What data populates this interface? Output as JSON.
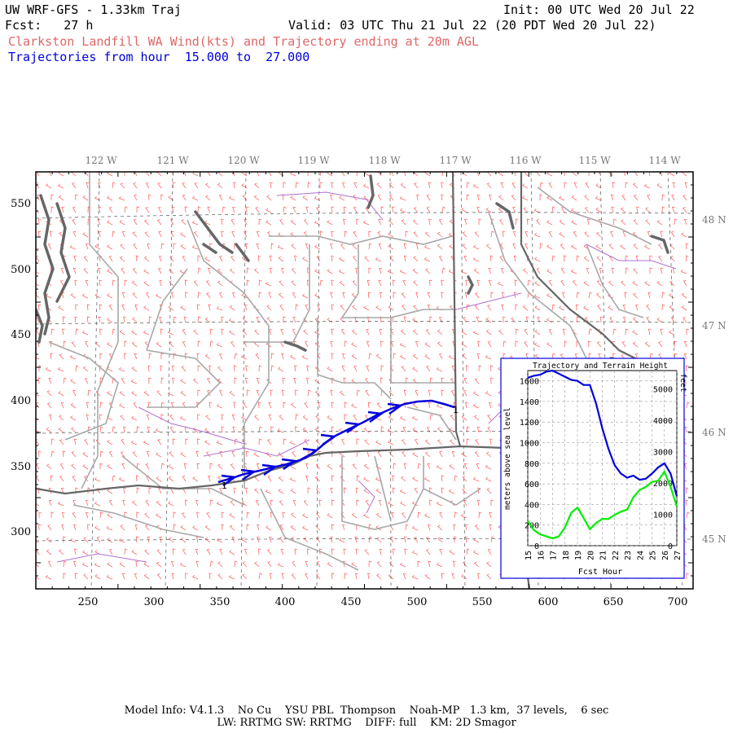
{
  "header": {
    "title": "UW WRF-GFS - 1.33km Traj",
    "init": "Init: 00 UTC Wed 20 Jul 22",
    "fcst": "Fcst:   27 h",
    "valid": "Valid: 03 UTC Thu 21 Jul 22 (20 PDT Wed 20 Jul 22)",
    "subtitle": "Clarkston Landfill WA Wind(kts) and Trajectory ending at 20m AGL",
    "traj_range": "Trajectories from hour  15.000 to  27.000"
  },
  "map": {
    "lon_labels": [
      "122 W",
      "121 W",
      "120 W",
      "119 W",
      "118 W",
      "117 W",
      "116 W",
      "115 W",
      "114 W"
    ],
    "lat_labels": [
      "48 N",
      "47 N",
      "46 N",
      "45 N"
    ],
    "grid_y_ticks": [
      "550",
      "500",
      "450",
      "400",
      "350",
      "300"
    ],
    "grid_x_ticks": [
      "250",
      "300",
      "350",
      "400",
      "450",
      "500",
      "550",
      "600",
      "650",
      "700"
    ],
    "trajectory_start_label": "1",
    "trajectory_end_label": "1",
    "colors": {
      "wind_barbs": "#ff6666",
      "trajectory": "#0000dd",
      "state_borders": "#666666",
      "county_borders": "#aaaaaa",
      "rivers": "#aa66cc",
      "water": "#666666"
    }
  },
  "inset": {
    "title": "Trajectory and Terrain Height",
    "xlabel": "Fcst Hour",
    "ylabel_left": "meters above sea level",
    "ylabel_right": "feet",
    "left_ticks": [
      "1600",
      "1400",
      "1200",
      "1000",
      "800",
      "600",
      "400",
      "200",
      "0"
    ],
    "right_ticks": [
      "5000",
      "4000",
      "3000",
      "2000",
      "1000",
      "0"
    ],
    "x_ticks": [
      "15",
      "16",
      "17",
      "18",
      "19",
      "20",
      "21",
      "22",
      "23",
      "24",
      "25",
      "26",
      "27"
    ],
    "series_colors": {
      "trajectory": "#0000dd",
      "terrain": "#00ee00"
    }
  },
  "chart_data": {
    "type": "line",
    "title": "Trajectory and Terrain Height",
    "xlabel": "Fcst Hour",
    "ylabel": "meters above sea level",
    "xlim": [
      15,
      27
    ],
    "ylim": [
      0,
      1700
    ],
    "grid": true,
    "series": [
      {
        "name": "",
        "x": [
          15.0,
          15.5,
          16.0,
          16.5,
          17.0,
          17.5,
          18.0,
          18.5,
          19.0,
          19.5,
          20.0,
          20.5,
          21.0,
          21.5,
          22.0,
          22.5,
          23.0,
          23.5,
          24.0,
          24.5,
          25.0,
          25.5,
          26.0,
          26.5,
          27.0
        ],
        "y": [
          1630,
          1650,
          1660,
          1690,
          1700,
          1670,
          1640,
          1610,
          1600,
          1560,
          1560,
          1380,
          1140,
          940,
          780,
          700,
          660,
          680,
          640,
          650,
          700,
          760,
          800,
          700,
          480
        ]
      },
      {
        "name": "",
        "x": [
          15.0,
          15.5,
          16.0,
          16.5,
          17.0,
          17.5,
          18.0,
          18.5,
          19.0,
          19.5,
          20.0,
          20.5,
          21.0,
          21.5,
          22.0,
          22.5,
          23.0,
          23.5,
          24.0,
          24.5,
          25.0,
          25.5,
          26.0,
          26.5,
          27.0
        ],
        "y": [
          240,
          150,
          110,
          90,
          70,
          90,
          180,
          320,
          370,
          270,
          160,
          220,
          260,
          260,
          300,
          330,
          350,
          470,
          540,
          570,
          620,
          630,
          720,
          570,
          380
        ]
      }
    ]
  },
  "footer": {
    "line1": "Model Info: V4.1.3    No Cu    YSU PBL  Thompson    Noah-MP   1.3 km,  37 levels,    6 sec",
    "line2": "LW: RRTMG SW: RRTMG    DIFF: full    KM: 2D Smagor"
  }
}
